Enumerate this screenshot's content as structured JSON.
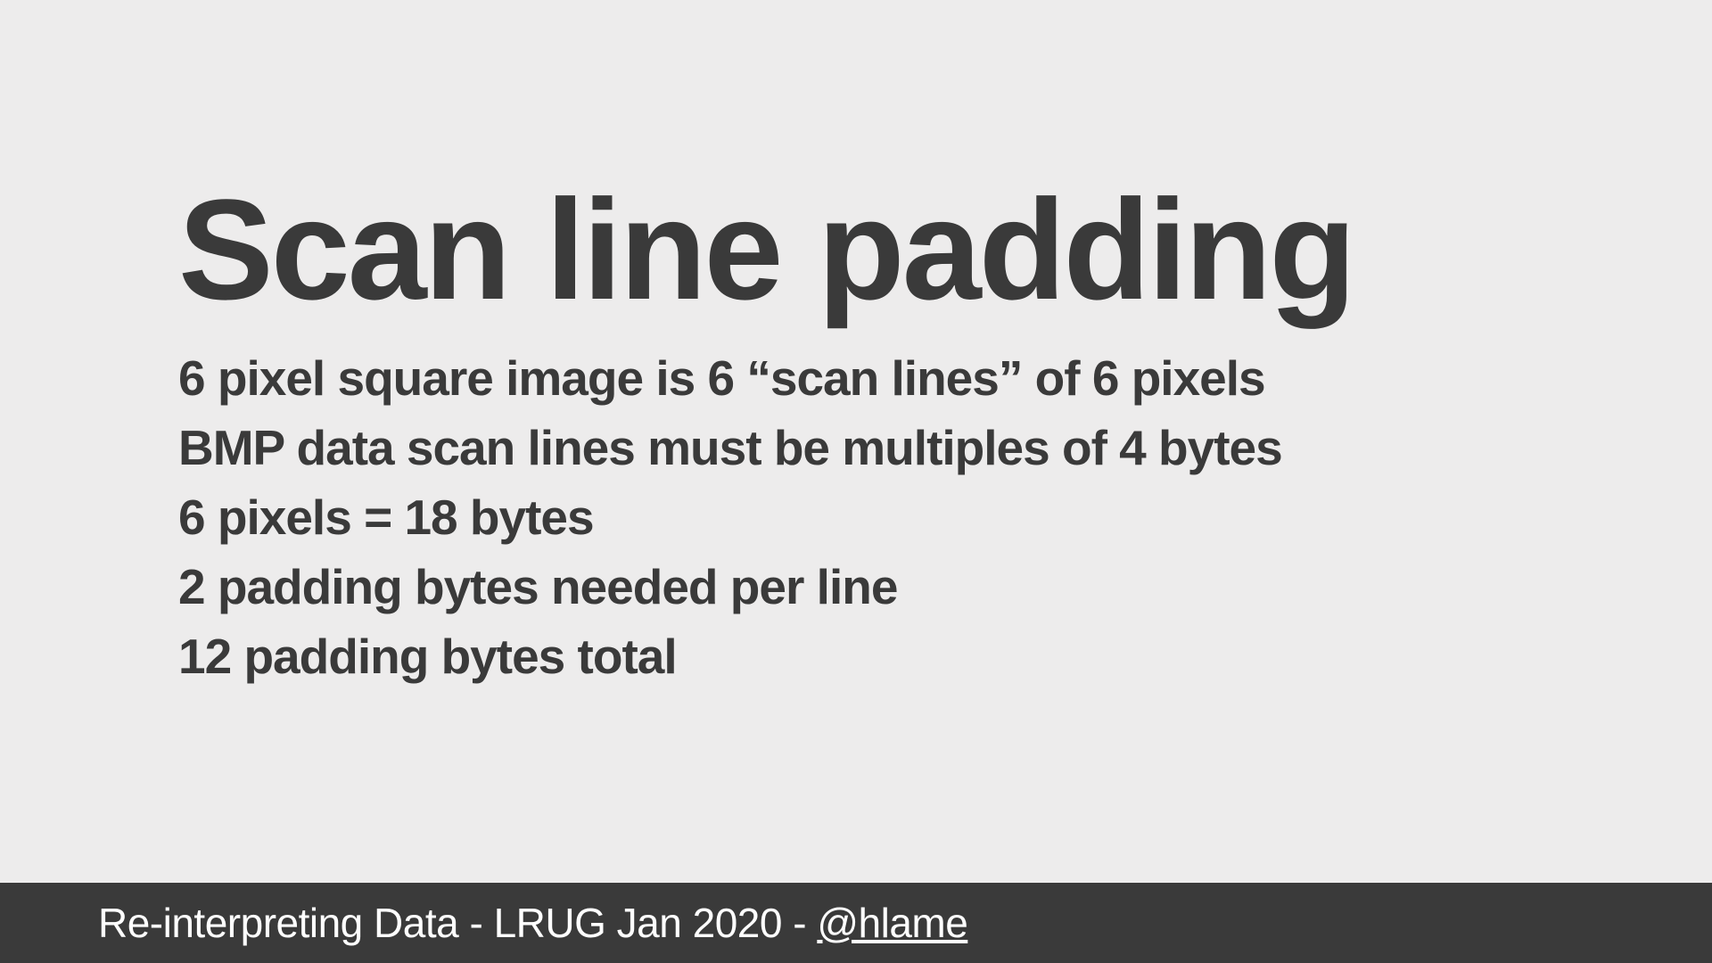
{
  "slide": {
    "title": "Scan line padding",
    "lines": [
      "6 pixel square image is 6 “scan lines” of 6 pixels",
      "BMP data scan lines must be multiples of 4 bytes",
      "6 pixels = 18 bytes",
      "2 padding bytes needed per line",
      "12 padding bytes total"
    ],
    "background_color": "#edecec",
    "title_color": "#3a3a3a",
    "title_fontsize": 160,
    "body_color": "#3a3a3a",
    "body_fontsize": 55
  },
  "footer": {
    "prefix": "Re-interpreting Data - LRUG Jan 2020 - ",
    "link_text": "@hlame",
    "background_color": "#3a3a3a",
    "text_color": "#ffffff",
    "fontsize": 46
  }
}
